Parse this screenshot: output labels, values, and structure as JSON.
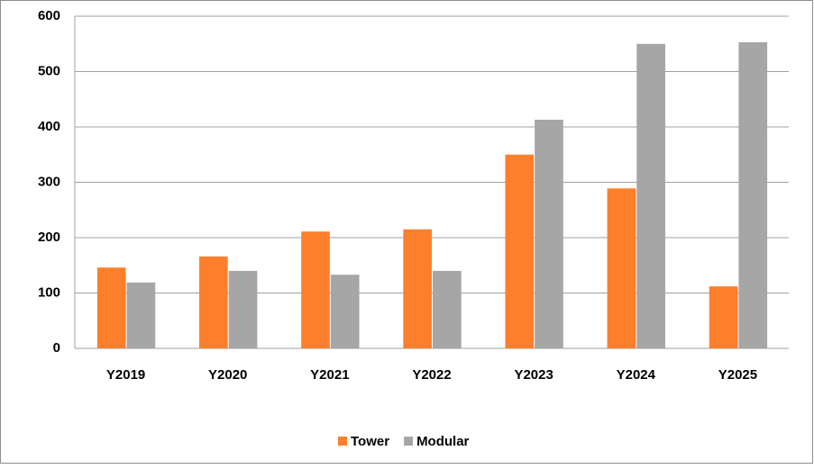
{
  "chart_data": {
    "type": "bar",
    "categories": [
      "Y2019",
      "Y2020",
      "Y2021",
      "Y2022",
      "Y2023",
      "Y2024",
      "Y2025"
    ],
    "series": [
      {
        "name": "Tower",
        "color": "#fd7f2c",
        "values": [
          146,
          166,
          211,
          215,
          350,
          289,
          112
        ]
      },
      {
        "name": "Modular",
        "color": "#a6a6a6",
        "values": [
          119,
          140,
          133,
          140,
          413,
          550,
          553
        ]
      }
    ],
    "ylim": [
      0,
      600
    ],
    "yticks": [
      0,
      100,
      200,
      300,
      400,
      500,
      600
    ],
    "grid": true,
    "legend": "bottom"
  }
}
